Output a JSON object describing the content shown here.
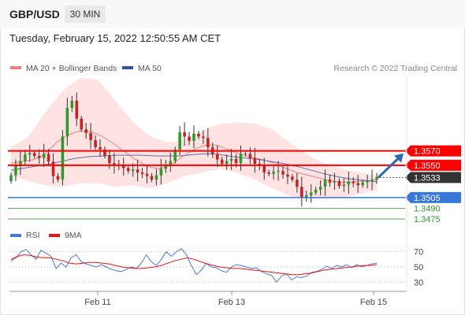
{
  "header": {
    "symbol": "GBP/USD",
    "timeframe": "30 MIN",
    "timestamp": "Tuesday, February 15, 2022 12:50:55 AM CET"
  },
  "price_chart": {
    "legend": [
      {
        "label": "MA 20 + Bollinger Bands",
        "color": "#f08080"
      },
      {
        "label": "MA 50",
        "color": "#2f5597"
      }
    ],
    "credit": "Research © 2022 Trading Central"
  },
  "colors": {
    "up_candle": "#2e9a2e",
    "down_candle": "#cc2222",
    "resistance": "#ff0000",
    "current": "#333333",
    "pivot": "#3a78d8",
    "support": "#2e9a2e",
    "bollinger_fill": "#ffdede",
    "ma20": "#f08080",
    "ma50": "#5a6fa8",
    "arrow": "#2a6bb0",
    "rsi": "#4a78d8",
    "rsi_ma": "#ee1111"
  },
  "rsi_panel": {
    "legend": [
      {
        "label": "RSI",
        "color": "#4a78d8"
      },
      {
        "label": "9MA",
        "color": "#ee1111"
      }
    ]
  },
  "chart_data": {
    "type": "line",
    "title": "GBP/USD 30 MIN",
    "x_ticks": [
      "Feb 11",
      "Feb 13",
      "Feb 15"
    ],
    "y_range": [
      1.3462,
      1.3675
    ],
    "levels": [
      {
        "label": "1.3570",
        "value": 1.357,
        "kind": "resistance"
      },
      {
        "label": "1.3550",
        "value": 1.355,
        "kind": "resistance"
      },
      {
        "label": "1.3533",
        "value": 1.3533,
        "kind": "current"
      },
      {
        "label": "1.3505",
        "value": 1.3505,
        "kind": "pivot"
      },
      {
        "label": "1.3490",
        "value": 1.349,
        "kind": "support"
      },
      {
        "label": "1.3475",
        "value": 1.3475,
        "kind": "support"
      }
    ],
    "price_close_series": [
      1.3536,
      1.3549,
      1.3556,
      1.3565,
      1.3567,
      1.3563,
      1.356,
      1.3566,
      1.3555,
      1.3535,
      1.353,
      1.359,
      1.363,
      1.364,
      1.3615,
      1.36,
      1.3595,
      1.3585,
      1.3575,
      1.3572,
      1.3563,
      1.3553,
      1.3551,
      1.3549,
      1.3546,
      1.3542,
      1.3544,
      1.354,
      1.3538,
      1.3535,
      1.353,
      1.3536,
      1.3545,
      1.3551,
      1.3556,
      1.3572,
      1.3596,
      1.359,
      1.3584,
      1.3594,
      1.359,
      1.3588,
      1.3575,
      1.3566,
      1.3558,
      1.3552,
      1.3556,
      1.3559,
      1.3553,
      1.3566,
      1.3566,
      1.356,
      1.3552,
      1.3549,
      1.354,
      1.3538,
      1.3541,
      1.3542,
      1.3537,
      1.3534,
      1.353,
      1.352,
      1.3505,
      1.3508,
      1.3512,
      1.3516,
      1.352,
      1.353,
      1.3526,
      1.3528,
      1.3521,
      1.3523,
      1.3527,
      1.3525,
      1.3522,
      1.3526,
      1.3528,
      1.353,
      1.3533
    ],
    "ma20_series": [
      1.3553,
      1.3555,
      1.3558,
      1.3566,
      1.3582,
      1.3592,
      1.3598,
      1.3597,
      1.359,
      1.358,
      1.3568,
      1.3557,
      1.3548,
      1.3545,
      1.355,
      1.3562,
      1.3572,
      1.3578,
      1.3578,
      1.3572,
      1.3566,
      1.3561,
      1.3558,
      1.3553,
      1.3546,
      1.354,
      1.3536,
      1.3532,
      1.3528,
      1.3526,
      1.3527,
      1.3528,
      1.353
    ],
    "ma50_series": [
      1.3543,
      1.3546,
      1.3549,
      1.3552,
      1.3556,
      1.356,
      1.3562,
      1.3563,
      1.3564,
      1.3564,
      1.3564,
      1.3563,
      1.3563,
      1.3563,
      1.3565,
      1.3566,
      1.3565,
      1.3562,
      1.356,
      1.3558,
      1.3555,
      1.3552,
      1.3548,
      1.3543,
      1.3538,
      1.3534,
      1.3531,
      1.3529,
      1.3527
    ],
    "bollinger_upper_series": [
      1.3575,
      1.359,
      1.3625,
      1.3655,
      1.3672,
      1.3669,
      1.364,
      1.361,
      1.359,
      1.3582,
      1.3585,
      1.3598,
      1.3608,
      1.361,
      1.3608,
      1.36,
      1.3582,
      1.3565,
      1.3552,
      1.3545,
      1.354,
      1.3535
    ],
    "bollinger_lower_series": [
      1.3535,
      1.3528,
      1.3522,
      1.352,
      1.3525,
      1.3525,
      1.352,
      1.3522,
      1.3518,
      1.3525,
      1.3535,
      1.354,
      1.3545,
      1.354,
      1.353,
      1.3518,
      1.3507,
      1.3503,
      1.3503,
      1.3504,
      1.351,
      1.3515
    ],
    "rsi": {
      "title": "RSI",
      "y_ticks": [
        70,
        50,
        30
      ],
      "ylim": [
        20,
        80
      ],
      "rsi_series": [
        58,
        62,
        70,
        73,
        66,
        60,
        72,
        68,
        64,
        48,
        55,
        50,
        62,
        66,
        57,
        54,
        52,
        50,
        53,
        50,
        47,
        45,
        44,
        47,
        50,
        48,
        55,
        66,
        57,
        52,
        60,
        70,
        64,
        70,
        74,
        66,
        52,
        40,
        46,
        55,
        50,
        49,
        45,
        43,
        50,
        53,
        52,
        50,
        48,
        49,
        44,
        41,
        39,
        30,
        38,
        41,
        33,
        37,
        36,
        38,
        43,
        44,
        47,
        51,
        48,
        52,
        50,
        53,
        49,
        53,
        50,
        52,
        54,
        55
      ],
      "ma9_series": [
        60,
        64,
        66,
        65,
        63,
        62,
        62,
        60,
        58,
        55,
        54,
        55,
        56,
        56,
        55,
        54,
        52,
        50,
        49,
        48,
        48,
        49,
        50,
        52,
        55,
        58,
        60,
        62,
        60,
        57,
        54,
        52,
        50,
        49,
        48,
        48,
        47,
        46,
        45,
        44,
        43,
        42,
        41,
        40,
        40,
        41,
        42,
        44,
        46,
        47,
        48,
        49,
        50,
        51,
        52,
        52,
        53
      ]
    }
  }
}
